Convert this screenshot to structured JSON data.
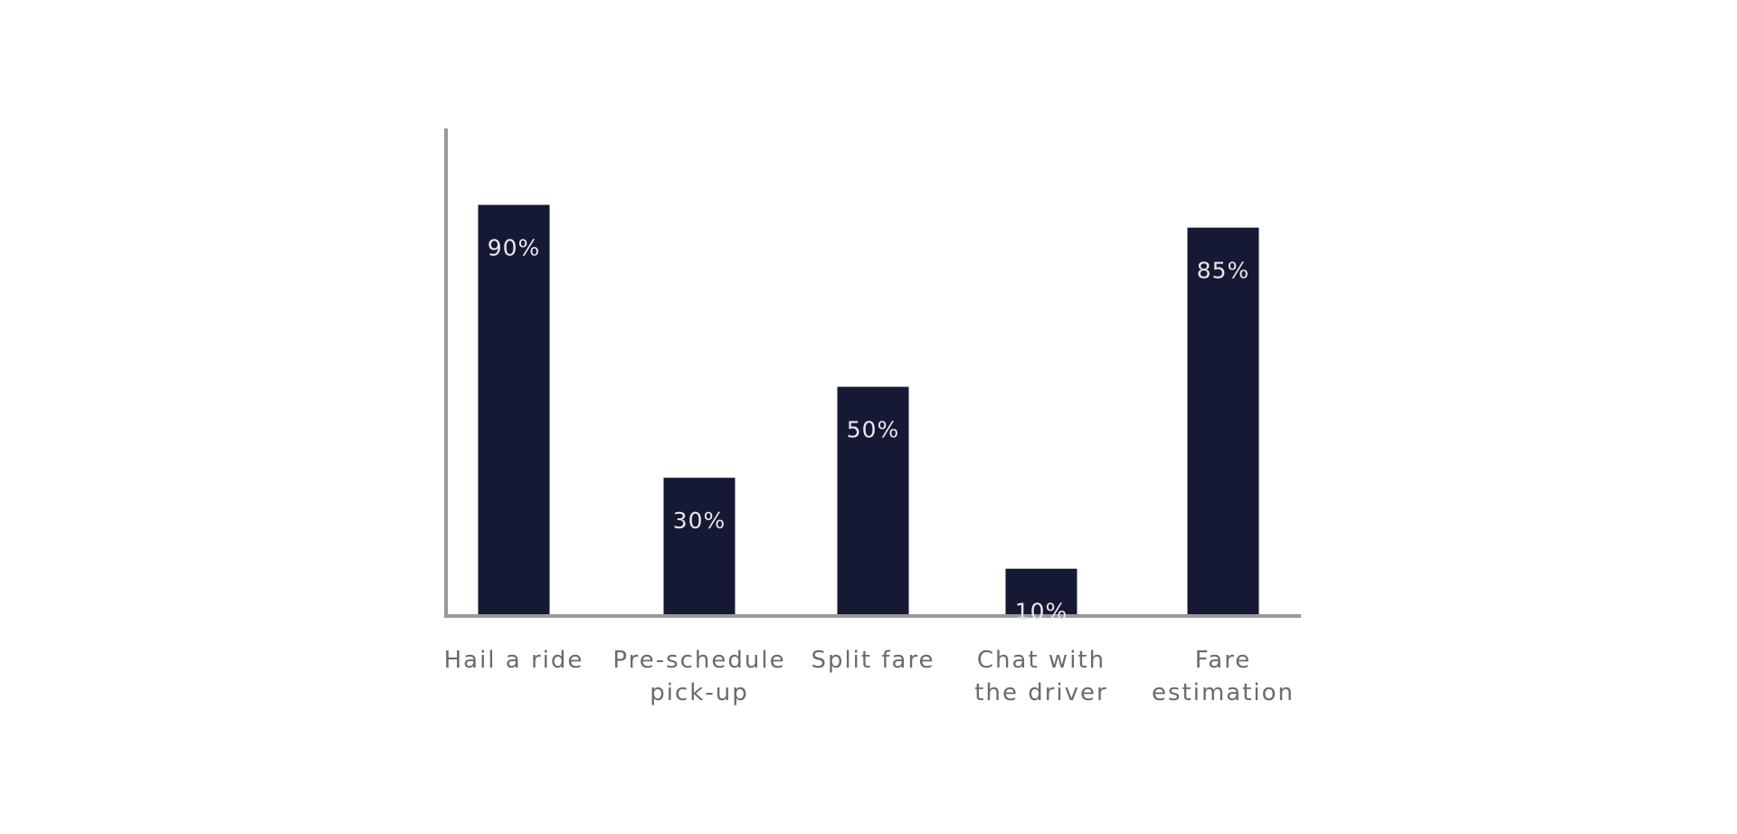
{
  "chart_data": {
    "type": "bar",
    "categories": [
      [
        "Hail a ride"
      ],
      [
        "Pre-schedule",
        "pick-up"
      ],
      [
        "Split fare"
      ],
      [
        "Chat with",
        "the driver"
      ],
      [
        "Fare",
        "estimation"
      ]
    ],
    "values": [
      90,
      30,
      50,
      10,
      85
    ],
    "data_labels": [
      "90%",
      "30%",
      "50%",
      "10%",
      "85%"
    ],
    "ylim": [
      0,
      108
    ],
    "grid": false,
    "legend": "none",
    "title": "",
    "xlabel": "",
    "ylabel": "",
    "colors": {
      "bar": "#151933",
      "axis": "#9a9a9a",
      "bar_label": "#e6e6ea",
      "category_label": "#6b6b6b"
    }
  }
}
